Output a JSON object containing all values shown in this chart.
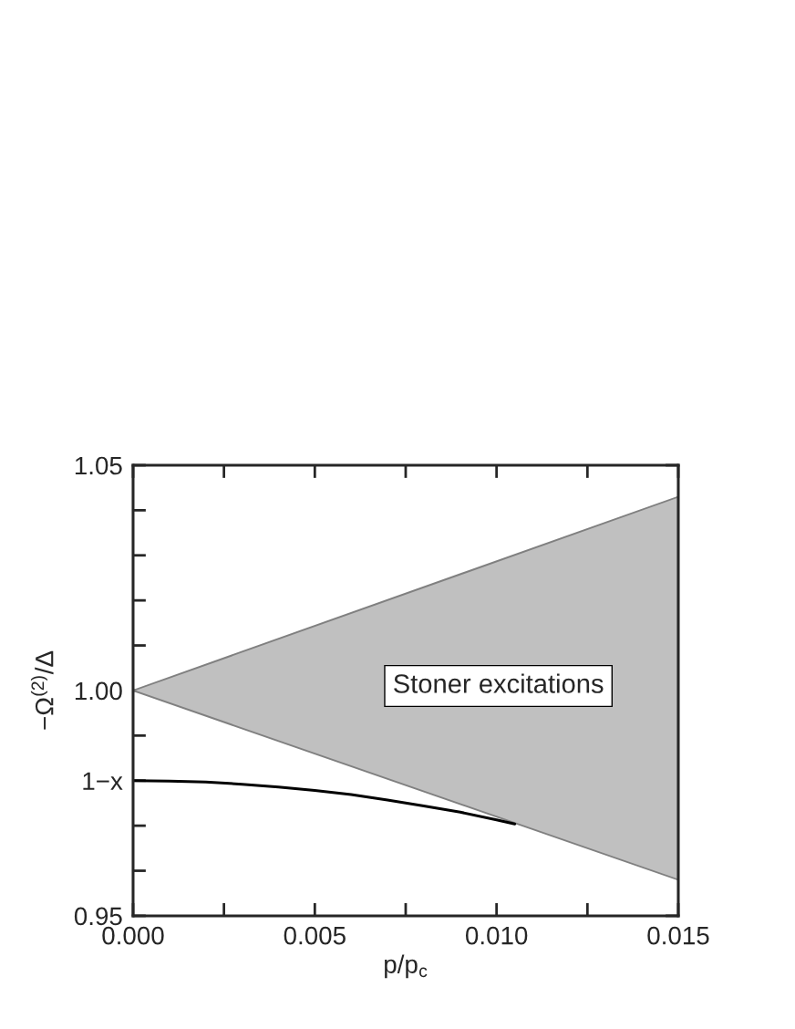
{
  "chart_data": {
    "type": "line",
    "xlabel": "p/p$_{c}$",
    "ylabel": "−Ω$^{(2)}$/Δ",
    "xlim": [
      0,
      0.015
    ],
    "ylim": [
      0.95,
      1.05
    ],
    "xticks": [
      {
        "value": 0,
        "label": "0.000"
      },
      {
        "value": 0.0025,
        "label": null
      },
      0.005,
      {
        "value": 0.0075,
        "label": null
      },
      {
        "value": 0.01,
        "label": "0.010"
      },
      {
        "value": 0.0125,
        "label": null
      },
      0.015
    ],
    "yticks": [
      0.95,
      {
        "value": 0.96,
        "label": null
      },
      {
        "value": 0.97,
        "label": null
      },
      {
        "value": 0.98,
        "label": "1−x"
      },
      {
        "value": 0.99,
        "label": null
      },
      {
        "value": 1.0,
        "label": "1.00"
      },
      {
        "value": 1.01,
        "label": null
      },
      {
        "value": 1.02,
        "label": null
      },
      {
        "value": 1.03,
        "label": null
      },
      {
        "value": 1.04,
        "label": null
      },
      1.05
    ],
    "grid": false,
    "annotations": [
      "Stoner excitations"
    ],
    "series": [
      {
        "type": "area",
        "color": "#c0c0c0",
        "x": [
          0,
          0.015
        ],
        "values": [
          null,
          null
        ],
        "lower": [
          1.0,
          0.958
        ],
        "upper": [
          1.0,
          1.043
        ]
      },
      {
        "color": "#000000",
        "x": [
          0,
          0.001,
          0.002,
          0.003,
          0.004,
          0.005,
          0.006,
          0.007,
          0.008,
          0.009,
          0.01,
          0.0105
        ],
        "values": [
          0.98,
          0.9799,
          0.9797,
          0.9792,
          0.9786,
          0.9778,
          0.9769,
          0.9757,
          0.9744,
          0.973,
          0.9713,
          0.9704
        ]
      }
    ]
  }
}
